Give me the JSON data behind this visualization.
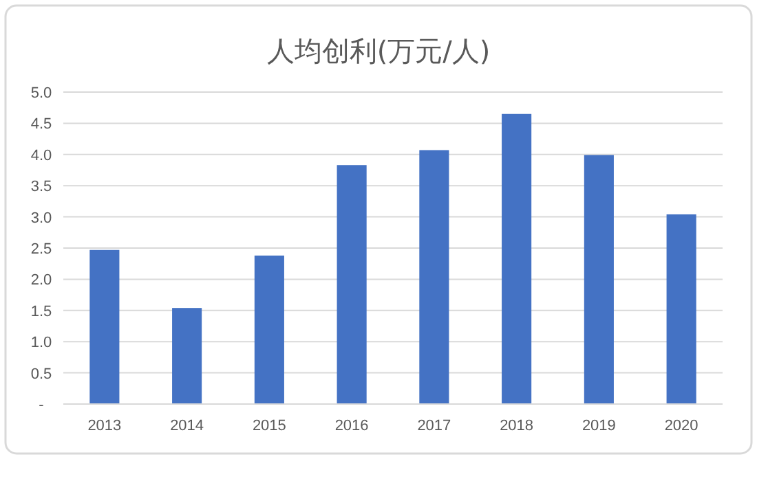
{
  "chart_data": {
    "type": "bar",
    "title": "人均创利(万元/人)",
    "categories": [
      "2013",
      "2014",
      "2015",
      "2016",
      "2017",
      "2018",
      "2019",
      "2020"
    ],
    "values": [
      2.47,
      1.54,
      2.38,
      3.83,
      4.07,
      4.65,
      3.99,
      3.04
    ],
    "color": "#4472c4",
    "ylim": [
      0,
      5
    ],
    "yticks": [
      {
        "value": 0,
        "label": "-"
      },
      0.5,
      {
        "value": 1,
        "label": "1.0"
      },
      1.5,
      {
        "value": 2,
        "label": "2.0"
      },
      2.5,
      {
        "value": 3,
        "label": "3.0"
      },
      3.5,
      {
        "value": 4,
        "label": "4.0"
      },
      4.5,
      {
        "value": 5,
        "label": "5.0"
      }
    ],
    "grid": "y"
  }
}
